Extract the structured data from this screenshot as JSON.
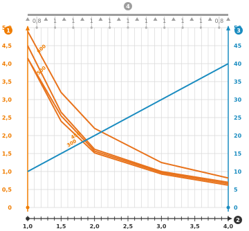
{
  "chart_data": {
    "type": "line",
    "axes": {
      "badges": {
        "left": "1",
        "right": "3",
        "x": "2",
        "top": "4"
      },
      "y_left": {
        "min": 0,
        "max": 5,
        "ticks": [
          "0",
          "0,5",
          "1,0",
          "1,5",
          "2,0",
          "2,5",
          "3,0",
          "3,5",
          "4,0",
          "4,5",
          "5,0"
        ]
      },
      "y_right": {
        "min": 0,
        "max": 50,
        "ticks": [
          "0",
          "5",
          "10",
          "15",
          "20",
          "25",
          "30",
          "35",
          "40",
          "45",
          "50"
        ]
      },
      "x": {
        "min": 1.0,
        "max": 4.0,
        "ticks": [
          "1,0",
          "1,5",
          "2,0",
          "2,5",
          "3,0",
          "3,5",
          "4,0"
        ]
      }
    },
    "span_labels": [
      "0,8",
      "1",
      "1",
      "1",
      "1",
      "1",
      "1",
      "1",
      "1",
      "1",
      "0,8"
    ],
    "series": [
      {
        "name": "600",
        "axis": "left",
        "color": "#e8731c",
        "points": [
          [
            1.0,
            4.9
          ],
          [
            1.5,
            3.2
          ],
          [
            2.0,
            2.2
          ],
          [
            3.0,
            1.25
          ],
          [
            4.0,
            0.82
          ]
        ]
      },
      {
        "name": "500",
        "axis": "left",
        "color": "#e8731c",
        "points": [
          [
            1.0,
            4.5
          ],
          [
            1.5,
            2.65
          ],
          [
            2.0,
            1.62
          ],
          [
            3.0,
            1.0
          ],
          [
            4.0,
            0.7
          ]
        ]
      },
      {
        "name": "450",
        "axis": "left",
        "color": "#e8731c",
        "points": [
          [
            1.0,
            4.15
          ],
          [
            1.5,
            2.55
          ],
          [
            2.0,
            1.57
          ],
          [
            3.0,
            0.97
          ],
          [
            4.0,
            0.66
          ]
        ]
      },
      {
        "name": "300",
        "axis": "left",
        "color": "#e8731c",
        "points": [
          [
            1.0,
            4.15
          ],
          [
            1.5,
            2.4
          ],
          [
            2.0,
            1.52
          ],
          [
            3.0,
            0.93
          ],
          [
            4.0,
            0.62
          ]
        ]
      },
      {
        "name": "",
        "axis": "right",
        "color": "#1a8cc0",
        "points": [
          [
            1.0,
            10
          ],
          [
            4.0,
            40
          ]
        ]
      }
    ],
    "grid": true
  }
}
